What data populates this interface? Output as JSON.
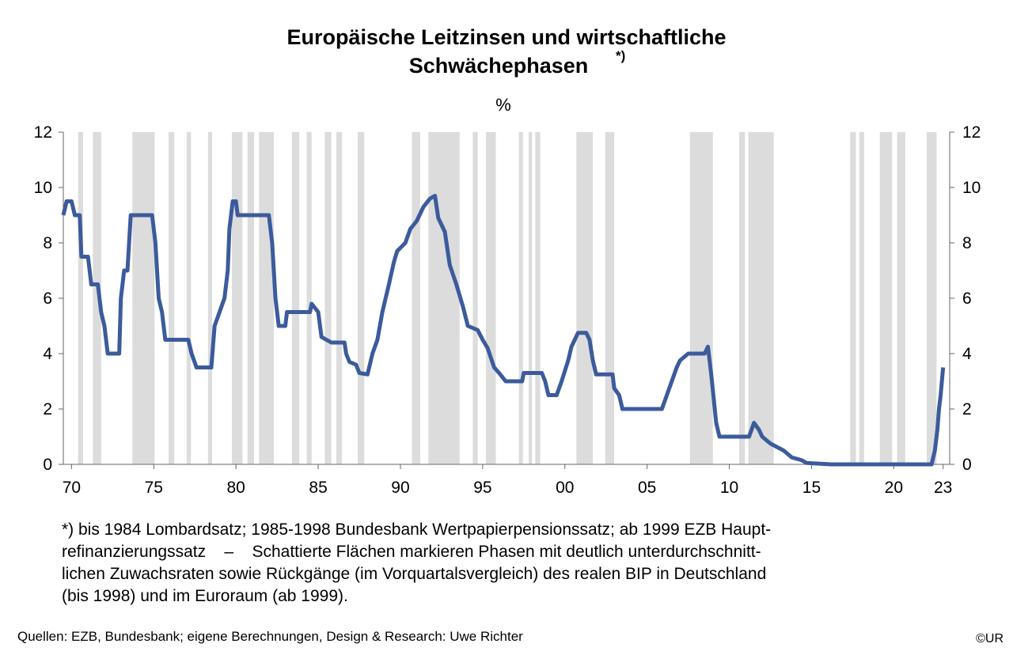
{
  "chart_data": {
    "type": "line",
    "title_lines": [
      "Europäische Leitzinsen  und wirtschaftliche",
      "Schwächephasen"
    ],
    "title_note": "*)",
    "y_unit": "%",
    "xlim": [
      1969.5,
      2023.4
    ],
    "xticks": [
      {
        "value": 1970,
        "label": "70"
      },
      {
        "value": 1975,
        "label": "75"
      },
      {
        "value": 1980,
        "label": "80"
      },
      {
        "value": 1985,
        "label": "85"
      },
      {
        "value": 1990,
        "label": "90"
      },
      {
        "value": 1995,
        "label": "95"
      },
      {
        "value": 2000,
        "label": "00"
      },
      {
        "value": 2005,
        "label": "05"
      },
      {
        "value": 2010,
        "label": "10"
      },
      {
        "value": 2015,
        "label": "15"
      },
      {
        "value": 2020,
        "label": "20"
      },
      {
        "value": 2023,
        "label": "23"
      }
    ],
    "ylim": [
      0,
      12
    ],
    "yticks": [
      0,
      2,
      4,
      6,
      8,
      10,
      12
    ],
    "y2lim": [
      0,
      12
    ],
    "y2ticks": [
      0,
      2,
      4,
      6,
      8,
      10,
      12
    ],
    "grid": false,
    "shade_color": "#dcdcdc",
    "shaded": [
      [
        1970.4,
        1970.7
      ],
      [
        1971.3,
        1971.8
      ],
      [
        1973.7,
        1975.05
      ],
      [
        1975.9,
        1976.25
      ],
      [
        1977.0,
        1977.26
      ],
      [
        1978.3,
        1978.55
      ],
      [
        1979.75,
        1980.4
      ],
      [
        1980.7,
        1981.1
      ],
      [
        1981.4,
        1982.3
      ],
      [
        1983.4,
        1983.85
      ],
      [
        1984.3,
        1984.6
      ],
      [
        1985.4,
        1985.8
      ],
      [
        1986.1,
        1986.45
      ],
      [
        1987.4,
        1987.8
      ],
      [
        1990.7,
        1991.2
      ],
      [
        1991.7,
        1993.6
      ],
      [
        1994.4,
        1994.7
      ],
      [
        1995.2,
        1995.8
      ],
      [
        1997.2,
        1997.45
      ],
      [
        1997.8,
        1998.0
      ],
      [
        1998.2,
        1998.5
      ],
      [
        2000.7,
        2001.7
      ],
      [
        2002.45,
        2003.0
      ],
      [
        2007.6,
        2009.0
      ],
      [
        2010.6,
        2010.95
      ],
      [
        2011.15,
        2012.7
      ],
      [
        2017.35,
        2017.7
      ],
      [
        2017.9,
        2018.2
      ],
      [
        2019.15,
        2019.9
      ],
      [
        2020.2,
        2020.7
      ],
      [
        2022.0,
        2022.6
      ]
    ],
    "series": [
      {
        "color": "#3c5b9c",
        "x": [
          1969.5,
          1969.7,
          1970.0,
          1970.2,
          1970.5,
          1970.6,
          1971.0,
          1971.2,
          1971.6,
          1971.8,
          1972.0,
          1972.2,
          1972.9,
          1973.0,
          1973.2,
          1973.4,
          1973.6,
          1974.9,
          1975.1,
          1975.3,
          1975.5,
          1975.7,
          1977.1,
          1977.3,
          1977.6,
          1978.5,
          1978.7,
          1979.0,
          1979.3,
          1979.5,
          1979.6,
          1979.8,
          1980.0,
          1980.1,
          1982.0,
          1982.2,
          1982.4,
          1982.6,
          1983.0,
          1983.1,
          1984.5,
          1984.6,
          1985.0,
          1985.2,
          1985.8,
          1986.6,
          1986.7,
          1986.9,
          1987.3,
          1987.5,
          1988.0,
          1988.3,
          1988.6,
          1988.9,
          1989.3,
          1989.6,
          1989.8,
          1990.3,
          1990.6,
          1991.0,
          1991.4,
          1991.8,
          1992.1,
          1992.3,
          1992.7,
          1993.0,
          1993.4,
          1993.8,
          1994.1,
          1994.7,
          1995.0,
          1995.3,
          1995.7,
          1996.0,
          1996.4,
          1997.4,
          1997.5,
          1998.6,
          1998.8,
          1999.0,
          1999.5,
          1999.8,
          2000.2,
          2000.4,
          2000.8,
          2001.3,
          2001.5,
          2001.7,
          2001.9,
          2002.9,
          2003.0,
          2003.3,
          2003.5,
          2005.9,
          2006.2,
          2006.5,
          2006.8,
          2007.0,
          2007.5,
          2008.5,
          2008.7,
          2008.9,
          2009.2,
          2009.4,
          2011.2,
          2011.5,
          2011.8,
          2012.0,
          2012.5,
          2013.3,
          2013.8,
          2014.4,
          2014.7,
          2016.2,
          2022.3,
          2022.5,
          2022.65,
          2022.75,
          2022.85,
          2023.0
        ],
        "values": [
          9,
          9.5,
          9.5,
          9,
          9,
          7.5,
          7.5,
          6.5,
          6.5,
          5.5,
          5,
          4,
          4,
          6,
          7,
          7,
          9,
          9,
          8,
          6,
          5.5,
          4.5,
          4.5,
          4,
          3.5,
          3.5,
          5,
          5.5,
          6,
          7,
          8.5,
          9.5,
          9.5,
          9,
          9,
          8,
          6,
          5,
          5,
          5.5,
          5.5,
          5.8,
          5.5,
          4.6,
          4.4,
          4.4,
          4,
          3.7,
          3.6,
          3.3,
          3.25,
          4,
          4.5,
          5.5,
          6.5,
          7.3,
          7.7,
          8,
          8.5,
          8.8,
          9.3,
          9.6,
          9.7,
          8.9,
          8.4,
          7.2,
          6.5,
          5.7,
          5,
          4.85,
          4.5,
          4.2,
          3.5,
          3.3,
          3.0,
          3.0,
          3.3,
          3.3,
          3.0,
          2.5,
          2.5,
          3.0,
          3.75,
          4.25,
          4.75,
          4.75,
          4.5,
          3.75,
          3.25,
          3.25,
          2.75,
          2.5,
          2.0,
          2.0,
          2.5,
          3.0,
          3.5,
          3.75,
          4.0,
          4.0,
          4.25,
          3.25,
          1.5,
          1.0,
          1.0,
          1.5,
          1.25,
          1.0,
          0.75,
          0.5,
          0.25,
          0.15,
          0.05,
          0,
          0,
          0.5,
          1.25,
          2.0,
          2.5,
          3.5
        ]
      }
    ],
    "footnote_lines": [
      "*) bis 1984 Lombardsatz; 1985-1998 Bundesbank Wertpapierpensionssatz; ab 1999 EZB Haupt-",
      "refinanzierungssatz    –    Schattierte Flächen markieren Phasen mit deutlich unterdurchschnitt-",
      "lichen Zuwachsraten sowie Rückgänge (im Vorquartalsvergleich) des realen BIP in Deutschland",
      "(bis 1998) und im Euroraum (ab 1999)."
    ],
    "source": "Quellen:  EZB, Bundesbank; eigene Berechnungen, Design & Research: Uwe Richter",
    "copyright": "©UR"
  }
}
